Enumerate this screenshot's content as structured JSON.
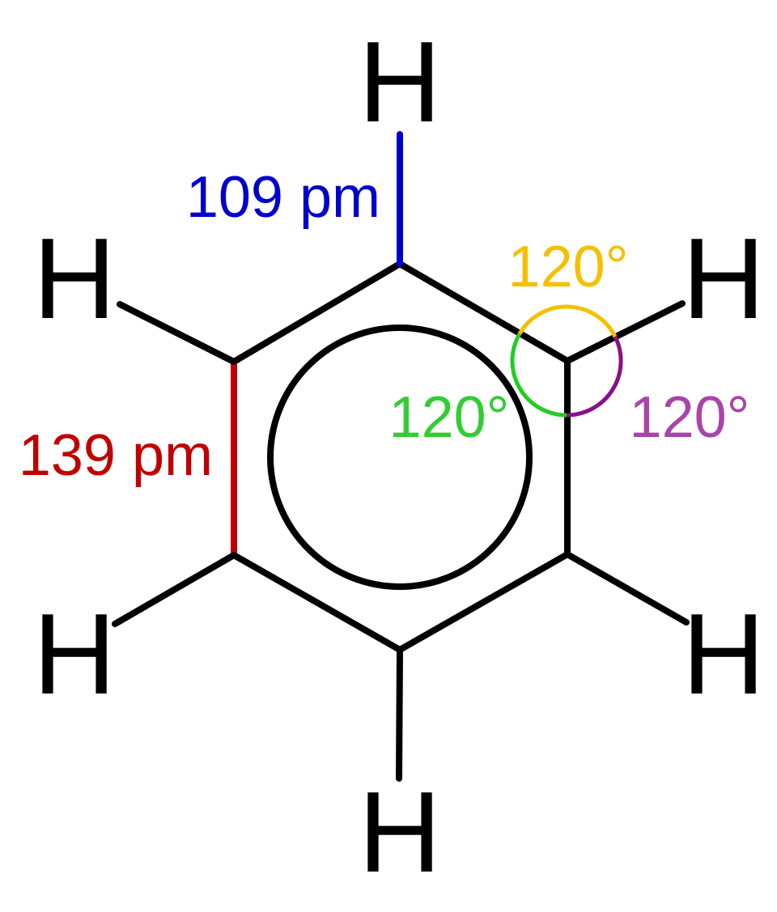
{
  "hydrogens": [
    "H",
    "H",
    "H",
    "H",
    "H",
    "H"
  ],
  "bond_lengths": [
    "109 pm",
    "139 pm"
  ],
  "angles": [
    "120°",
    "120°",
    "120°"
  ]
}
